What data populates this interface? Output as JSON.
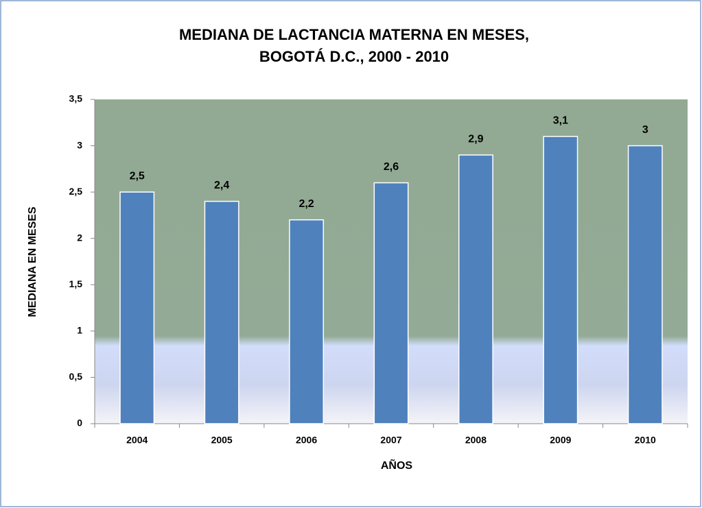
{
  "chart_data": {
    "type": "bar",
    "title": [
      "MEDIANA DE LACTANCIA MATERNA EN MESES,",
      "BOGOTÁ  D.C., 2000 - 2010"
    ],
    "x_label": "AÑOS",
    "y_label": "MEDIANA EN MESES",
    "categories": [
      "2004",
      "2005",
      "2006",
      "2007",
      "2008",
      "2009",
      "2010"
    ],
    "values": [
      2.5,
      2.4,
      2.2,
      2.6,
      2.9,
      3.1,
      3
    ],
    "value_labels": [
      "2,5",
      "2,4",
      "2,2",
      "2,6",
      "2,9",
      "3,1",
      "3"
    ],
    "color": "#4f81bd",
    "ylim": [
      0,
      3.5
    ],
    "yticks": [
      0,
      {
        "value": 0.5,
        "label": "0,5"
      },
      1,
      {
        "value": 1.5,
        "label": "1,5"
      },
      2,
      {
        "value": 2.5,
        "label": "2,5"
      },
      3,
      {
        "value": 3.5,
        "label": "3,5"
      }
    ],
    "grid": false
  }
}
